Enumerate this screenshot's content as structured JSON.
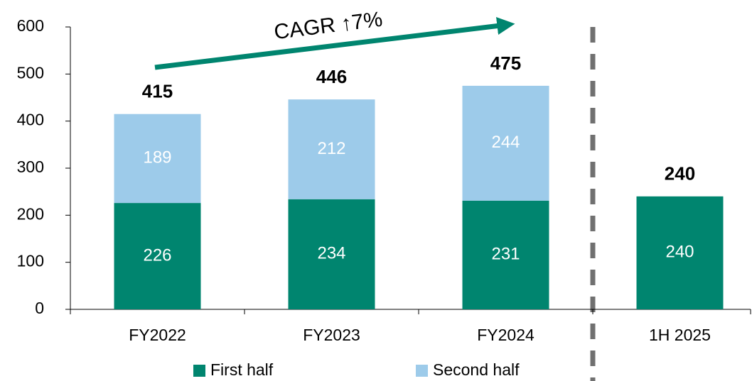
{
  "chart_data": {
    "type": "stacked_bar",
    "annotation": "CAGR ↑7%",
    "categories": [
      "FY2022",
      "FY2023",
      "FY2024",
      "1H 2025"
    ],
    "series": [
      {
        "name": "First half",
        "color": "#00856f",
        "values": [
          226,
          234,
          231,
          240
        ]
      },
      {
        "name": "Second half",
        "color": "#9dcbea",
        "values": [
          189,
          212,
          244,
          null
        ]
      }
    ],
    "totals": [
      415,
      446,
      475,
      240
    ],
    "ylim": [
      0,
      600
    ],
    "yticks": [
      0,
      100,
      200,
      300,
      400,
      500,
      600
    ],
    "legend": "bottom"
  }
}
